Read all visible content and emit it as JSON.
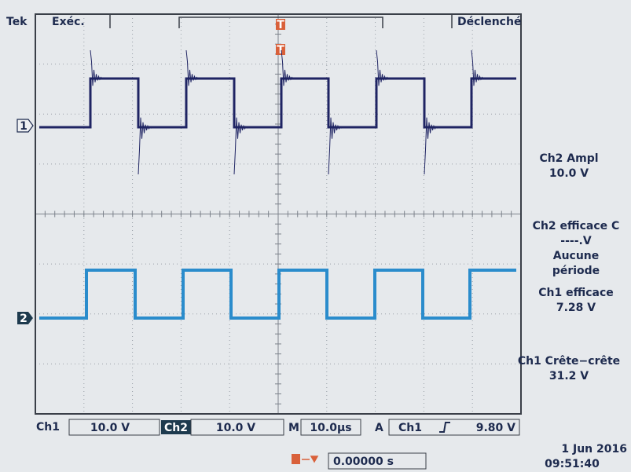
{
  "header": {
    "brand": "Tek",
    "status": "Exéc.",
    "trigger_state": "Déclenché"
  },
  "markers": {
    "ch1": "1",
    "ch2": "2",
    "trigger": "T"
  },
  "measurements": [
    {
      "label": "Ch2 Ampl",
      "value": "10.0 V"
    },
    {
      "label": "Ch2 efficace C",
      "value": "----.V",
      "note": [
        "Aucune",
        "période"
      ]
    },
    {
      "label": "Ch1 efficace",
      "value": "7.28 V"
    },
    {
      "label": "Ch1 Crête−crête",
      "value": "31.2 V"
    }
  ],
  "footer": {
    "ch1_label": "Ch1",
    "ch1_scale": "10.0 V",
    "ch2_label": "Ch2",
    "ch2_scale": "10.0 V",
    "timebase_label": "M",
    "timebase": "10.0µs",
    "trigger_label": "A",
    "trigger_source": "Ch1",
    "trigger_level": "9.80 V",
    "trigger_position": "0.00000 s",
    "date": "1 Jun 2016",
    "time": "09:51:40"
  }
}
